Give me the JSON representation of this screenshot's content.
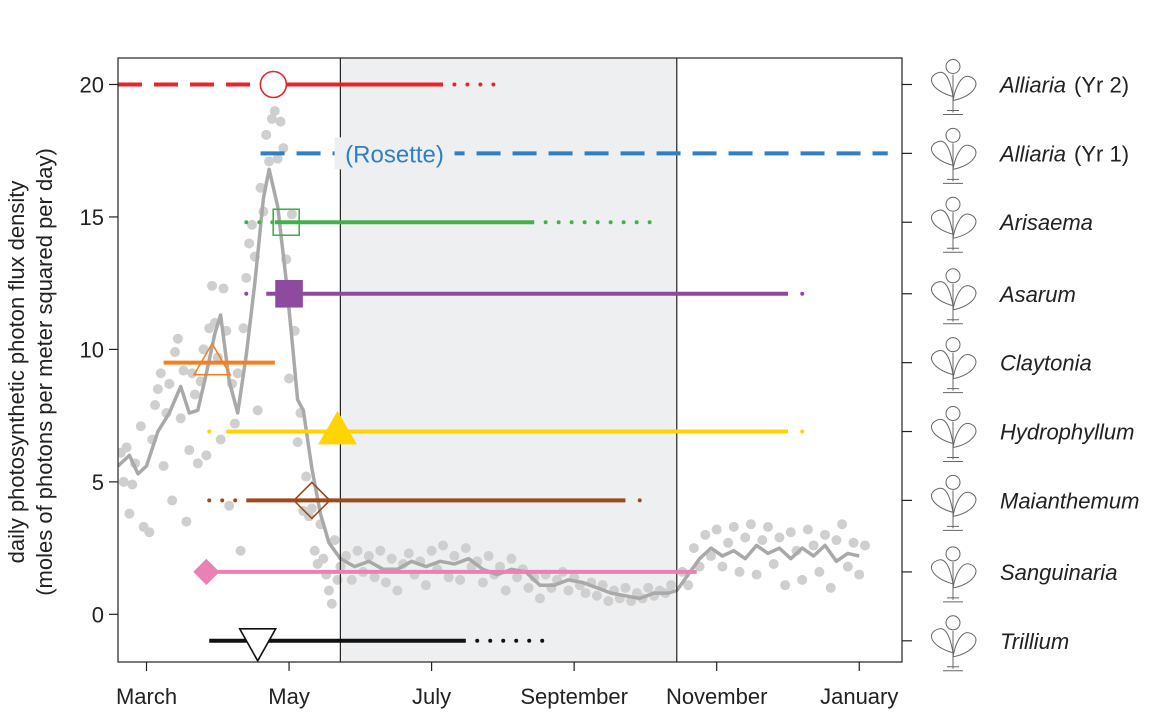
{
  "chart_data": {
    "type": "line",
    "ylabel_line1": "daily photosynthetic photon flux density",
    "ylabel_line2": "(moles of photons per meter squared per day)",
    "xlabel": "",
    "ylim": [
      -1.8,
      21
    ],
    "xlim": [
      -1,
      26.5
    ],
    "x_unit": "month index (0 = March 1)",
    "x_ticks": [
      {
        "label": "March",
        "x": 0
      },
      {
        "label": "May",
        "x": 5
      },
      {
        "label": "July",
        "x": 10
      },
      {
        "label": "September",
        "x": 15
      },
      {
        "label": "November",
        "x": 20
      },
      {
        "label": "January",
        "x": 25
      }
    ],
    "y_ticks": [
      0,
      5,
      10,
      15,
      20
    ],
    "shaded_period": {
      "x0": 6.8,
      "x1": 18.6,
      "color": "#eeeff0"
    },
    "canopy_lines": [
      6.8,
      18.6
    ],
    "light_series": {
      "name": "",
      "color": "#a9a9a9",
      "points_color": "#cfcfcf",
      "smooth": [
        [
          -1,
          5.6
        ],
        [
          -0.6,
          6.0
        ],
        [
          -0.3,
          5.3
        ],
        [
          0,
          5.6
        ],
        [
          0.4,
          6.9
        ],
        [
          0.8,
          7.6
        ],
        [
          1.2,
          8.6
        ],
        [
          1.5,
          7.6
        ],
        [
          1.8,
          7.7
        ],
        [
          2.1,
          9.1
        ],
        [
          2.4,
          10.6
        ],
        [
          2.6,
          11.3
        ],
        [
          2.9,
          8.8
        ],
        [
          3.2,
          7.6
        ],
        [
          3.5,
          9.8
        ],
        [
          3.8,
          12.5
        ],
        [
          4.1,
          15.7
        ],
        [
          4.3,
          16.8
        ],
        [
          4.6,
          15.4
        ],
        [
          4.9,
          12.6
        ],
        [
          5.1,
          10.4
        ],
        [
          5.3,
          8.1
        ],
        [
          5.5,
          7.7
        ],
        [
          5.8,
          5.5
        ],
        [
          6.1,
          3.8
        ],
        [
          6.4,
          2.7
        ],
        [
          6.8,
          2.1
        ],
        [
          7.3,
          1.8
        ],
        [
          7.8,
          2.0
        ],
        [
          8.3,
          1.7
        ],
        [
          8.8,
          1.7
        ],
        [
          9.3,
          2.0
        ],
        [
          9.8,
          1.8
        ],
        [
          10.3,
          2.0
        ],
        [
          10.8,
          1.9
        ],
        [
          11.3,
          2.1
        ],
        [
          11.8,
          1.7
        ],
        [
          12.3,
          1.5
        ],
        [
          12.8,
          1.7
        ],
        [
          13.3,
          1.6
        ],
        [
          13.8,
          1.1
        ],
        [
          14.3,
          1.1
        ],
        [
          14.8,
          1.3
        ],
        [
          15.3,
          1.2
        ],
        [
          15.8,
          1.0
        ],
        [
          16.3,
          0.8
        ],
        [
          16.8,
          0.7
        ],
        [
          17.3,
          0.6
        ],
        [
          17.8,
          0.8
        ],
        [
          18.3,
          0.8
        ],
        [
          18.6,
          0.9
        ],
        [
          19.0,
          1.5
        ],
        [
          19.4,
          2.1
        ],
        [
          19.8,
          2.5
        ],
        [
          20.2,
          2.2
        ],
        [
          20.6,
          2.4
        ],
        [
          21.0,
          2.1
        ],
        [
          21.4,
          2.6
        ],
        [
          21.8,
          2.3
        ],
        [
          22.2,
          2.5
        ],
        [
          22.6,
          2.1
        ],
        [
          23.0,
          2.5
        ],
        [
          23.4,
          2.2
        ],
        [
          23.8,
          2.6
        ],
        [
          24.2,
          2.0
        ],
        [
          24.6,
          2.3
        ],
        [
          25.0,
          2.2
        ]
      ],
      "points": [
        [
          -0.9,
          6.1
        ],
        [
          -0.8,
          5.0
        ],
        [
          -0.7,
          6.3
        ],
        [
          -0.6,
          3.8
        ],
        [
          -0.5,
          4.9
        ],
        [
          -0.4,
          5.7
        ],
        [
          -0.2,
          7.1
        ],
        [
          -0.1,
          3.3
        ],
        [
          0.1,
          3.1
        ],
        [
          0.2,
          6.6
        ],
        [
          0.3,
          7.9
        ],
        [
          0.4,
          8.5
        ],
        [
          0.5,
          9.1
        ],
        [
          0.6,
          5.6
        ],
        [
          0.7,
          7.6
        ],
        [
          0.8,
          8.7
        ],
        [
          0.9,
          4.3
        ],
        [
          1.0,
          9.9
        ],
        [
          1.1,
          10.4
        ],
        [
          1.2,
          7.4
        ],
        [
          1.3,
          9.2
        ],
        [
          1.4,
          3.5
        ],
        [
          1.5,
          6.2
        ],
        [
          1.6,
          9.1
        ],
        [
          1.7,
          8.3
        ],
        [
          1.8,
          5.7
        ],
        [
          1.9,
          8.8
        ],
        [
          2.0,
          10.0
        ],
        [
          2.1,
          6.0
        ],
        [
          2.2,
          10.8
        ],
        [
          2.3,
          12.4
        ],
        [
          2.4,
          11.0
        ],
        [
          2.5,
          9.7
        ],
        [
          2.6,
          6.6
        ],
        [
          2.7,
          12.3
        ],
        [
          2.8,
          10.7
        ],
        [
          2.9,
          4.1
        ],
        [
          3.0,
          8.7
        ],
        [
          3.1,
          7.2
        ],
        [
          3.2,
          9.1
        ],
        [
          3.3,
          2.4
        ],
        [
          3.4,
          10.8
        ],
        [
          3.5,
          12.7
        ],
        [
          3.6,
          14.0
        ],
        [
          3.7,
          14.7
        ],
        [
          3.8,
          13.5
        ],
        [
          3.9,
          7.7
        ],
        [
          4.0,
          16.1
        ],
        [
          4.1,
          15.2
        ],
        [
          4.2,
          18.1
        ],
        [
          4.3,
          17.1
        ],
        [
          4.4,
          18.7
        ],
        [
          4.5,
          19.0
        ],
        [
          4.6,
          17.2
        ],
        [
          4.7,
          18.6
        ],
        [
          4.8,
          17.6
        ],
        [
          4.9,
          13.4
        ],
        [
          5.0,
          8.9
        ],
        [
          5.1,
          15.1
        ],
        [
          5.2,
          10.7
        ],
        [
          5.3,
          6.5
        ],
        [
          5.4,
          7.6
        ],
        [
          5.5,
          3.9
        ],
        [
          5.6,
          5.2
        ],
        [
          5.7,
          3.7
        ],
        [
          5.8,
          4.0
        ],
        [
          5.9,
          2.4
        ],
        [
          6.0,
          1.9
        ],
        [
          6.1,
          3.4
        ],
        [
          6.2,
          2.1
        ],
        [
          6.3,
          1.5
        ],
        [
          6.4,
          0.9
        ],
        [
          6.5,
          0.4
        ],
        [
          6.6,
          2.8
        ],
        [
          6.7,
          1.3
        ],
        [
          6.8,
          1.8
        ],
        [
          7.0,
          2.2
        ],
        [
          7.2,
          1.3
        ],
        [
          7.4,
          2.4
        ],
        [
          7.6,
          1.6
        ],
        [
          7.8,
          2.2
        ],
        [
          8.0,
          1.4
        ],
        [
          8.2,
          2.4
        ],
        [
          8.4,
          1.2
        ],
        [
          8.6,
          2.1
        ],
        [
          8.8,
          0.9
        ],
        [
          9.0,
          1.9
        ],
        [
          9.2,
          2.3
        ],
        [
          9.4,
          1.5
        ],
        [
          9.6,
          2.0
        ],
        [
          9.8,
          1.1
        ],
        [
          10.0,
          2.4
        ],
        [
          10.2,
          1.7
        ],
        [
          10.4,
          2.6
        ],
        [
          10.6,
          1.4
        ],
        [
          10.8,
          2.2
        ],
        [
          11.0,
          1.3
        ],
        [
          11.2,
          2.5
        ],
        [
          11.4,
          1.8
        ],
        [
          11.6,
          2.0
        ],
        [
          11.8,
          1.2
        ],
        [
          12.0,
          2.2
        ],
        [
          12.2,
          1.5
        ],
        [
          12.4,
          1.8
        ],
        [
          12.6,
          0.9
        ],
        [
          12.8,
          2.1
        ],
        [
          13.0,
          1.4
        ],
        [
          13.2,
          1.7
        ],
        [
          13.4,
          1.0
        ],
        [
          13.6,
          1.4
        ],
        [
          13.8,
          0.6
        ],
        [
          14.0,
          1.5
        ],
        [
          14.2,
          1.0
        ],
        [
          14.4,
          1.3
        ],
        [
          14.6,
          1.6
        ],
        [
          14.8,
          0.9
        ],
        [
          15.0,
          1.4
        ],
        [
          15.2,
          1.1
        ],
        [
          15.4,
          0.8
        ],
        [
          15.6,
          1.2
        ],
        [
          15.8,
          0.7
        ],
        [
          16.0,
          1.1
        ],
        [
          16.2,
          0.5
        ],
        [
          16.4,
          0.9
        ],
        [
          16.6,
          0.6
        ],
        [
          16.8,
          1.0
        ],
        [
          17.0,
          0.5
        ],
        [
          17.2,
          0.8
        ],
        [
          17.4,
          0.6
        ],
        [
          17.6,
          1.0
        ],
        [
          17.8,
          0.7
        ],
        [
          18.0,
          0.9
        ],
        [
          18.2,
          0.8
        ],
        [
          18.4,
          1.1
        ],
        [
          18.8,
          1.6
        ],
        [
          19.0,
          1.1
        ],
        [
          19.2,
          2.5
        ],
        [
          19.4,
          1.8
        ],
        [
          19.6,
          3.0
        ],
        [
          19.8,
          2.2
        ],
        [
          20.0,
          3.2
        ],
        [
          20.2,
          1.8
        ],
        [
          20.4,
          2.7
        ],
        [
          20.6,
          3.3
        ],
        [
          20.8,
          1.6
        ],
        [
          21.0,
          2.9
        ],
        [
          21.2,
          3.4
        ],
        [
          21.4,
          1.5
        ],
        [
          21.6,
          2.8
        ],
        [
          21.8,
          3.3
        ],
        [
          22.0,
          1.9
        ],
        [
          22.2,
          2.9
        ],
        [
          22.4,
          1.1
        ],
        [
          22.6,
          3.1
        ],
        [
          22.8,
          2.4
        ],
        [
          23.0,
          1.3
        ],
        [
          23.2,
          3.2
        ],
        [
          23.4,
          2.6
        ],
        [
          23.6,
          1.6
        ],
        [
          23.8,
          3.0
        ],
        [
          24.0,
          1.0
        ],
        [
          24.2,
          2.8
        ],
        [
          24.4,
          3.4
        ],
        [
          24.6,
          1.8
        ],
        [
          24.8,
          2.7
        ],
        [
          25.0,
          1.5
        ],
        [
          25.2,
          2.6
        ]
      ]
    },
    "species": [
      {
        "name": "Alliaria",
        "suffix": "(Yr 2)",
        "y": 20,
        "color": "#e2262c",
        "segments": [
          {
            "x0": -1,
            "x1": 4.6,
            "style": "dashed"
          },
          {
            "x0": 4.6,
            "x1": 10.4,
            "style": "solid"
          },
          {
            "x0": 10.8,
            "x1": 12.5,
            "style": "dotted"
          }
        ],
        "marker": {
          "shape": "circle",
          "filled": false,
          "x": 4.45
        }
      },
      {
        "name": "Alliaria",
        "suffix": "(Yr 1)",
        "y": 17.4,
        "color": "#2f7fc1",
        "segments": [
          {
            "x0": 4.0,
            "x1": 26.0,
            "style": "dashed"
          }
        ],
        "annotation": {
          "text": "(Rosette)",
          "x": 8.7
        }
      },
      {
        "name": "Arisaema",
        "suffix": "",
        "y": 14.8,
        "color": "#44b04a",
        "segments": [
          {
            "x0": 3.5,
            "x1": 4.5,
            "style": "dotted"
          },
          {
            "x0": 4.5,
            "x1": 13.6,
            "style": "solid"
          },
          {
            "x0": 14.0,
            "x1": 18.0,
            "style": "dotted"
          }
        ],
        "marker": {
          "shape": "square",
          "filled": false,
          "x": 4.9
        }
      },
      {
        "name": "Asarum",
        "suffix": "",
        "y": 12.1,
        "color": "#8e4a9f",
        "segments": [
          {
            "x0": 3.5,
            "x1": 3.6,
            "style": "dotted"
          },
          {
            "x0": 4.2,
            "x1": 22.5,
            "style": "solid"
          },
          {
            "x0": 23.0,
            "x1": 23.1,
            "style": "dotted"
          }
        ],
        "marker": {
          "shape": "square",
          "filled": true,
          "x": 5.0
        }
      },
      {
        "name": "Claytonia",
        "suffix": "",
        "y": 9.5,
        "color": "#f08024",
        "segments": [
          {
            "x0": 0.6,
            "x1": 4.5,
            "style": "solid"
          }
        ],
        "marker": {
          "shape": "triangle-up",
          "filled": false,
          "x": 2.3
        }
      },
      {
        "name": "Hydrophyllum",
        "suffix": "",
        "y": 6.9,
        "color": "#ffd400",
        "segments": [
          {
            "x0": 2.2,
            "x1": 2.3,
            "style": "dotted"
          },
          {
            "x0": 2.8,
            "x1": 22.5,
            "style": "solid"
          },
          {
            "x0": 23.0,
            "x1": 23.1,
            "style": "dotted"
          }
        ],
        "marker": {
          "shape": "triangle-up",
          "filled": true,
          "x": 6.7
        }
      },
      {
        "name": "Maianthemum",
        "suffix": "",
        "y": 4.3,
        "color": "#9a4a1c",
        "segments": [
          {
            "x0": 2.2,
            "x1": 3.3,
            "style": "dotted"
          },
          {
            "x0": 3.5,
            "x1": 16.8,
            "style": "solid"
          },
          {
            "x0": 17.3,
            "x1": 17.4,
            "style": "dotted"
          }
        ],
        "marker": {
          "shape": "diamond",
          "filled": false,
          "x": 5.8
        }
      },
      {
        "name": "Sanguinaria",
        "suffix": "",
        "y": 1.6,
        "color": "#e982b4",
        "segments": [
          {
            "x0": 2.1,
            "x1": 19.3,
            "style": "solid"
          }
        ],
        "marker": {
          "shape": "diamond",
          "filled": true,
          "x": 2.1
        }
      },
      {
        "name": "Trillium",
        "suffix": "",
        "y": -1.0,
        "color": "#111111",
        "segments": [
          {
            "x0": 2.2,
            "x1": 11.2,
            "style": "solid"
          },
          {
            "x0": 11.6,
            "x1": 14.0,
            "style": "dotted"
          }
        ],
        "marker": {
          "shape": "triangle-down",
          "filled": false,
          "x": 3.9
        }
      }
    ]
  }
}
